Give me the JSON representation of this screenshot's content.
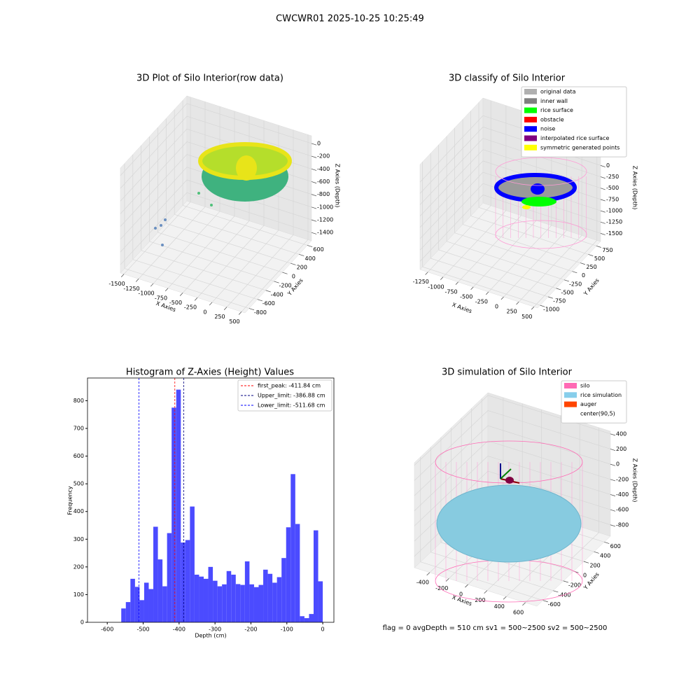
{
  "title": "CWCWR01 2025-10-25 10:25:49",
  "footer": "flag = 0     avgDepth = 510 cm  sv1 = 500~2500  sv2 = 500~2500",
  "chart_data": [
    {
      "type": "scatter3d",
      "title": "3D Plot of Silo Interior(row data)",
      "xlabel": "X Axies",
      "ylabel": "Y Axies",
      "zlabel": "Z Axies (Depth)",
      "xlim": [
        -1560,
        560
      ],
      "ylim": [
        -900,
        700
      ],
      "zlim": [
        -1530,
        120
      ],
      "xticks": [
        -1500,
        -1250,
        -1000,
        -750,
        -500,
        -250,
        0,
        250,
        500
      ],
      "yticks": [
        -800,
        -600,
        -400,
        -200,
        0,
        200,
        400,
        600
      ],
      "zticks": [
        -1400,
        -1200,
        -1000,
        -800,
        -600,
        -400,
        -200,
        0
      ]
    },
    {
      "type": "scatter3d",
      "title": "3D classify of Silo Interior",
      "xlabel": "X Axies",
      "ylabel": "Y Axies",
      "zlabel": "Z Axies (Depth)",
      "xlim": [
        -1380,
        560
      ],
      "ylim": [
        -1080,
        880
      ],
      "zlim": [
        -1680,
        640
      ],
      "xticks": [
        -1250,
        -1000,
        -750,
        -500,
        -250,
        0,
        250,
        500
      ],
      "yticks": [
        -1000,
        -750,
        -500,
        -250,
        0,
        250,
        500,
        750
      ],
      "zticks": [
        -1500,
        -1250,
        -1000,
        -750,
        -500,
        -250,
        0,
        250
      ],
      "legend": [
        {
          "name": "original data",
          "color": "#b0b0b0"
        },
        {
          "name": "inner wall",
          "color": "#808080"
        },
        {
          "name": "rice surface",
          "color": "#00ff00"
        },
        {
          "name": "obstacle",
          "color": "#ff0000"
        },
        {
          "name": "noise",
          "color": "#0000ff"
        },
        {
          "name": "interpolated rice surface",
          "color": "#800080"
        },
        {
          "name": "symmetric generated points",
          "color": "#ffff00"
        }
      ]
    },
    {
      "type": "histogram",
      "title": "Histogram of Z-Axies (Height) Values",
      "xlabel": "Depth (cm)",
      "ylabel": "Frequency",
      "color": "#4b4bff",
      "xlim": [
        -655,
        31
      ],
      "ylim": [
        0,
        882
      ],
      "xticks": [
        -600,
        -500,
        -400,
        -300,
        -200,
        -100,
        0
      ],
      "yticks": [
        0,
        100,
        200,
        300,
        400,
        500,
        600,
        700,
        800
      ],
      "bins": [
        -561,
        -548.25,
        -535.5,
        -522.75,
        -510,
        -497.25,
        -484.5,
        -471.75,
        -459,
        -446.25,
        -433.5,
        -420.75,
        -408,
        -395.25,
        -382.5,
        -369.75,
        -357,
        -344.25,
        -331.5,
        -318.75,
        -306,
        -293.25,
        -280.5,
        -267.75,
        -255,
        -242.25,
        -229.5,
        -216.75,
        -204,
        -191.25,
        -178.5,
        -165.75,
        -153,
        -140.25,
        -127.5,
        -114.75,
        -102,
        -89.25,
        -76.5,
        -63.75,
        -51,
        -38.25,
        -25.5,
        -12.75,
        0
      ],
      "values": [
        50,
        73,
        157,
        128,
        80,
        143,
        120,
        345,
        227,
        130,
        322,
        775,
        840,
        288,
        297,
        418,
        172,
        165,
        157,
        200,
        150,
        130,
        137,
        185,
        172,
        138,
        135,
        220,
        137,
        127,
        135,
        190,
        175,
        143,
        163,
        232,
        343,
        535,
        355,
        22,
        15,
        30,
        332,
        148
      ],
      "lines": [
        {
          "name": "first_peak: -411.84 cm",
          "x": -411.84,
          "color": "#ff0000"
        },
        {
          "name": "Upper_limit: -386.88 cm",
          "x": -386.88,
          "color": "#000080"
        },
        {
          "name": "Lower_limit: -511.68 cm",
          "x": -511.68,
          "color": "#0000ff"
        }
      ]
    },
    {
      "type": "surface3d",
      "title": "3D simulation of Silo Interior",
      "xlabel": "X Axies",
      "ylabel": "Y Axies",
      "zlabel": "Z Axies (Depth)",
      "xlim": [
        -560,
        720
      ],
      "ylim": [
        -720,
        720
      ],
      "zlim": [
        -950,
        435
      ],
      "xticks": [
        -400,
        -200,
        0,
        200,
        400,
        600
      ],
      "yticks": [
        -600,
        -400,
        -200,
        0,
        200,
        400,
        600
      ],
      "zticks": [
        -800,
        -600,
        -400,
        -200,
        0,
        200,
        400
      ],
      "legend": [
        {
          "name": "silo",
          "color": "#ff69b4"
        },
        {
          "name": "rice simulation",
          "color": "#87ceeb"
        },
        {
          "name": "auger",
          "color": "#ff4500"
        },
        {
          "name": "center(90,5)",
          "color": "#ffffff"
        }
      ]
    }
  ]
}
